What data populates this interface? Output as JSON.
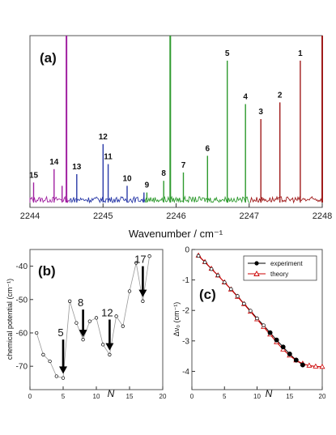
{
  "chart_data": [
    {
      "panel_label": "(a)",
      "type": "line",
      "xlabel": "Wavenumber / cm⁻¹",
      "xlim": [
        2244,
        2248
      ],
      "x_ticks": [
        "2244",
        "2245",
        "2246",
        "2247",
        "2248"
      ],
      "series": [
        {
          "color": "#a020a0",
          "peaks": [
            {
              "x": 2244.05,
              "h": 0.12
            },
            {
              "x": 2244.33,
              "h": 0.2
            },
            {
              "x": 2244.44,
              "h": 0.1
            },
            {
              "x": 2244.5,
              "h": 1.0
            }
          ]
        },
        {
          "color": "#2a3aa8",
          "peaks": [
            {
              "x": 2244.64,
              "h": 0.17
            },
            {
              "x": 2245.0,
              "h": 0.35
            },
            {
              "x": 2245.07,
              "h": 0.23
            },
            {
              "x": 2245.33,
              "h": 0.1
            },
            {
              "x": 2245.56,
              "h": 0.06
            }
          ]
        },
        {
          "color": "#2e9a2e",
          "peaks": [
            {
              "x": 2245.6,
              "h": 0.06
            },
            {
              "x": 2245.83,
              "h": 0.13
            },
            {
              "x": 2245.92,
              "h": 1.0
            },
            {
              "x": 2246.1,
              "h": 0.18
            },
            {
              "x": 2246.43,
              "h": 0.28
            },
            {
              "x": 2246.7,
              "h": 0.85
            },
            {
              "x": 2246.95,
              "h": 0.59
            }
          ]
        },
        {
          "color": "#a01c1c",
          "peaks": [
            {
              "x": 2247.16,
              "h": 0.5
            },
            {
              "x": 2247.42,
              "h": 0.6
            },
            {
              "x": 2247.7,
              "h": 0.85
            },
            {
              "x": 2248.0,
              "h": 1.0
            }
          ]
        }
      ],
      "peak_labels": [
        {
          "text": "1",
          "x": 2247.7
        },
        {
          "text": "2",
          "x": 2247.42
        },
        {
          "text": "3",
          "x": 2247.16
        },
        {
          "text": "4",
          "x": 2246.95
        },
        {
          "text": "5",
          "x": 2246.7
        },
        {
          "text": "6",
          "x": 2246.43
        },
        {
          "text": "7",
          "x": 2246.1
        },
        {
          "text": "8",
          "x": 2245.83
        },
        {
          "text": "9",
          "x": 2245.6
        },
        {
          "text": "10",
          "x": 2245.33
        },
        {
          "text": "11",
          "x": 2245.07
        },
        {
          "text": "12",
          "x": 2245.0
        },
        {
          "text": "13",
          "x": 2244.64
        },
        {
          "text": "14",
          "x": 2244.33
        },
        {
          "text": "15",
          "x": 2244.05
        }
      ]
    },
    {
      "panel_label": "(b)",
      "type": "line",
      "xlabel": "N",
      "ylabel": "chemical potential (cm⁻¹)",
      "xlim": [
        0,
        20
      ],
      "ylim": [
        -77,
        -35
      ],
      "x_ticks": [
        "0",
        "5",
        "10",
        "15",
        "20"
      ],
      "y_ticks": [
        "-40",
        "-50",
        "-60",
        "-70"
      ],
      "x": [
        1,
        2,
        3,
        4,
        5,
        6,
        7,
        8,
        9,
        10,
        11,
        12,
        13,
        14,
        15,
        16,
        17,
        18
      ],
      "values": [
        -60,
        -66.5,
        -68.5,
        -73,
        -73.5,
        -50.5,
        -57,
        -62,
        -56.5,
        -55.5,
        -63.5,
        -66.5,
        -55,
        -58,
        -47.5,
        -39,
        -50.5,
        -37
      ],
      "arrows": [
        {
          "text": "5",
          "x": 5,
          "y_from": -62,
          "y_to": -72
        },
        {
          "text": "8",
          "x": 8,
          "y_from": -53,
          "y_to": -61
        },
        {
          "text": "12",
          "x": 12,
          "y_from": -56,
          "y_to": -65
        },
        {
          "text": "17",
          "x": 17,
          "y_from": -40,
          "y_to": -49
        }
      ]
    },
    {
      "panel_label": "(c)",
      "type": "line",
      "xlabel": "N",
      "ylabel": "Δν₀ (cm⁻¹)",
      "xlim": [
        0,
        20
      ],
      "ylim": [
        -4.6,
        0
      ],
      "x_ticks": [
        "0",
        "5",
        "10",
        "15",
        "20"
      ],
      "y_ticks": [
        "0",
        "-1",
        "-2",
        "-3",
        "-4"
      ],
      "legend": "top-right",
      "series": [
        {
          "name": "experiment",
          "color": "#000000",
          "x": [
            1,
            2,
            3,
            4,
            5,
            6,
            7,
            8,
            9,
            10,
            11,
            12,
            13,
            14,
            15,
            16,
            17
          ],
          "values": [
            -0.21,
            -0.42,
            -0.64,
            -0.85,
            -1.08,
            -1.3,
            -1.53,
            -1.78,
            -2.01,
            -2.26,
            -2.49,
            -2.73,
            -2.97,
            -3.2,
            -3.43,
            -3.63,
            -3.79
          ]
        },
        {
          "name": "theory",
          "color": "#cc0000",
          "x": [
            1,
            2,
            3,
            4,
            5,
            6,
            7,
            8,
            9,
            10,
            11,
            12,
            13,
            14,
            15,
            16,
            17,
            18,
            19,
            20
          ],
          "values": [
            -0.2,
            -0.41,
            -0.63,
            -0.85,
            -1.08,
            -1.31,
            -1.55,
            -1.79,
            -2.04,
            -2.29,
            -2.54,
            -2.79,
            -3.04,
            -3.28,
            -3.48,
            -3.64,
            -3.75,
            -3.81,
            -3.84,
            -3.85
          ]
        }
      ]
    }
  ]
}
